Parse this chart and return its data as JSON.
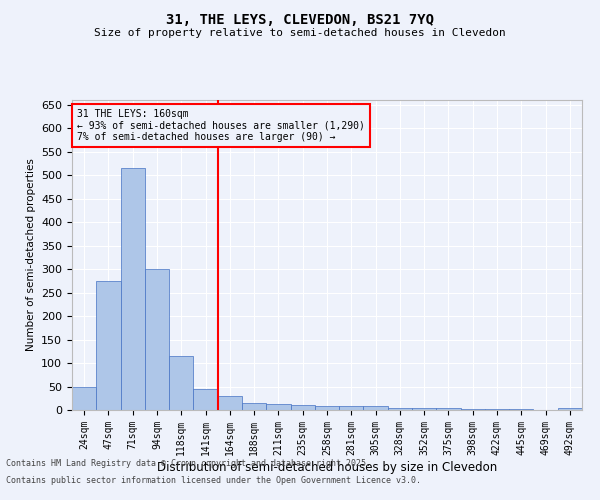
{
  "title1": "31, THE LEYS, CLEVEDON, BS21 7YQ",
  "title2": "Size of property relative to semi-detached houses in Clevedon",
  "xlabel": "Distribution of semi-detached houses by size in Clevedon",
  "ylabel": "Number of semi-detached properties",
  "bin_labels": [
    "24sqm",
    "47sqm",
    "71sqm",
    "94sqm",
    "118sqm",
    "141sqm",
    "164sqm",
    "188sqm",
    "211sqm",
    "235sqm",
    "258sqm",
    "281sqm",
    "305sqm",
    "328sqm",
    "352sqm",
    "375sqm",
    "398sqm",
    "422sqm",
    "445sqm",
    "469sqm",
    "492sqm"
  ],
  "bar_values": [
    50,
    275,
    515,
    300,
    115,
    45,
    30,
    15,
    13,
    10,
    8,
    8,
    8,
    5,
    5,
    5,
    2,
    2,
    2,
    0,
    5
  ],
  "bar_color": "#aec6e8",
  "bar_edge_color": "#4472c4",
  "vline_bin_index": 6,
  "vline_color": "red",
  "annotation_title": "31 THE LEYS: 160sqm",
  "annotation_line1": "← 93% of semi-detached houses are smaller (1,290)",
  "annotation_line2": "7% of semi-detached houses are larger (90) →",
  "annotation_box_color": "red",
  "ylim": [
    0,
    660
  ],
  "yticks": [
    0,
    50,
    100,
    150,
    200,
    250,
    300,
    350,
    400,
    450,
    500,
    550,
    600,
    650
  ],
  "footer1": "Contains HM Land Registry data © Crown copyright and database right 2025.",
  "footer2": "Contains public sector information licensed under the Open Government Licence v3.0.",
  "bg_color": "#eef2fb",
  "grid_color": "#ffffff"
}
